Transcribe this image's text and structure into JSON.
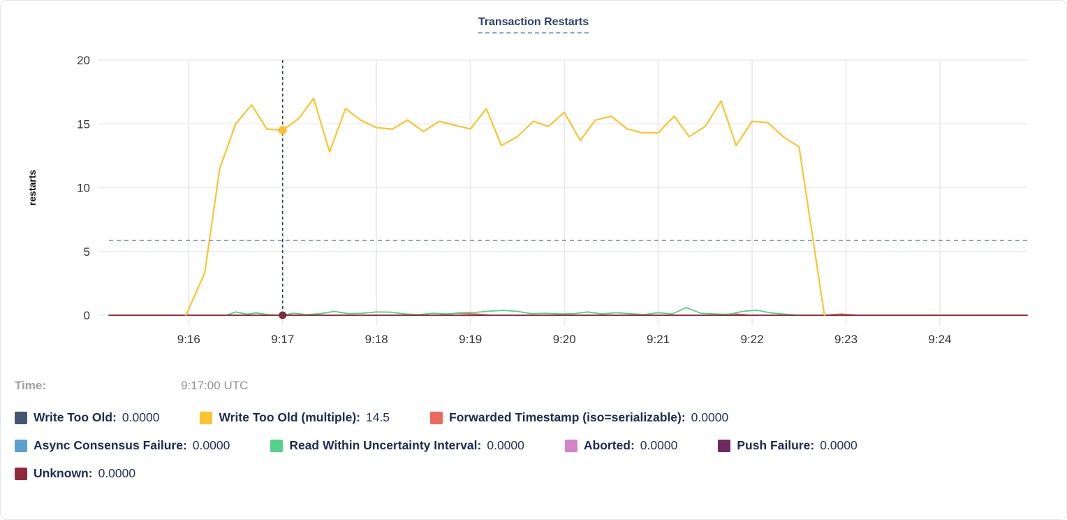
{
  "time_row": {
    "label": "Time:",
    "value": "9:17:00 UTC"
  },
  "chart_data": {
    "type": "line",
    "title": "Transaction Restarts",
    "ylabel": "restarts",
    "ylim": [
      0,
      20
    ],
    "yticks": [
      0,
      5,
      10,
      15,
      20
    ],
    "grid": true,
    "x_axis": {
      "domain_minutes": [
        15.15,
        24.93
      ],
      "tick_minutes": [
        16,
        17,
        18,
        19,
        20,
        21,
        22,
        23,
        24
      ],
      "tick_labels": [
        "9:16",
        "9:17",
        "9:18",
        "9:19",
        "9:20",
        "9:21",
        "9:22",
        "9:23",
        "9:24"
      ]
    },
    "hover": {
      "time_label": "9:17:00 UTC",
      "time_minute": 17,
      "highlighted_series": "Write Too Old (multiple)",
      "highlighted_value": 14.5,
      "crosshair_y_value": 5.86,
      "vline_color": "#27405a",
      "hline_color": "#6f8aa8",
      "dot_top_color": "#fdc02a",
      "dot_bottom_color": "#7c2d3e"
    },
    "grid_color": "#ebebeb",
    "tick_text_color": "#343434",
    "draw_order": [
      0,
      3,
      5,
      6,
      2,
      4,
      7,
      1
    ],
    "legend_rows": [
      [
        0,
        1,
        2
      ],
      [
        3,
        4,
        5,
        6
      ],
      [
        7
      ]
    ],
    "series": [
      {
        "name": "Write Too Old",
        "color": "#45566e",
        "stroke_width": 1.5,
        "value_at_hover": "0.0000",
        "points": [
          [
            15.15,
            0
          ],
          [
            24.93,
            0
          ]
        ]
      },
      {
        "name": "Write Too Old (multiple)",
        "color": "#fec32d",
        "stroke_width": 2.2,
        "value_at_hover": "14.5",
        "points": [
          [
            15.97,
            0
          ],
          [
            16.17,
            3.3
          ],
          [
            16.33,
            11.5
          ],
          [
            16.5,
            15.0
          ],
          [
            16.67,
            16.5
          ],
          [
            16.83,
            14.6
          ],
          [
            17.0,
            14.5
          ],
          [
            17.17,
            15.4
          ],
          [
            17.33,
            17.0
          ],
          [
            17.5,
            12.8
          ],
          [
            17.67,
            16.2
          ],
          [
            17.83,
            15.3
          ],
          [
            18.0,
            14.7
          ],
          [
            18.17,
            14.6
          ],
          [
            18.33,
            15.3
          ],
          [
            18.5,
            14.4
          ],
          [
            18.67,
            15.2
          ],
          [
            18.83,
            14.9
          ],
          [
            19.0,
            14.6
          ],
          [
            19.17,
            16.2
          ],
          [
            19.33,
            13.3
          ],
          [
            19.5,
            14.0
          ],
          [
            19.67,
            15.2
          ],
          [
            19.83,
            14.8
          ],
          [
            20.0,
            15.9
          ],
          [
            20.17,
            13.7
          ],
          [
            20.33,
            15.3
          ],
          [
            20.5,
            15.6
          ],
          [
            20.67,
            14.6
          ],
          [
            20.83,
            14.3
          ],
          [
            21.0,
            14.3
          ],
          [
            21.17,
            15.6
          ],
          [
            21.33,
            14.0
          ],
          [
            21.5,
            14.8
          ],
          [
            21.67,
            16.8
          ],
          [
            21.83,
            13.3
          ],
          [
            22.0,
            15.2
          ],
          [
            22.17,
            15.1
          ],
          [
            22.33,
            14.0
          ],
          [
            22.5,
            13.2
          ],
          [
            22.77,
            0
          ]
        ]
      },
      {
        "name": "Forwarded Timestamp (iso=serializable)",
        "color": "#eb6a5e",
        "stroke_width": 1.6,
        "value_at_hover": "0.0000",
        "points": [
          [
            15.15,
            0
          ],
          [
            18.65,
            0
          ],
          [
            18.85,
            0.16
          ],
          [
            19.05,
            0.1
          ],
          [
            19.25,
            0
          ],
          [
            21.6,
            0
          ],
          [
            21.8,
            0.12
          ],
          [
            22.0,
            0
          ],
          [
            22.75,
            0
          ],
          [
            22.95,
            0.1
          ],
          [
            23.15,
            0
          ],
          [
            24.93,
            0
          ]
        ]
      },
      {
        "name": "Async Consensus Failure",
        "color": "#5b9fd3",
        "stroke_width": 1.5,
        "value_at_hover": "0.0000",
        "points": [
          [
            15.15,
            0
          ],
          [
            24.93,
            0
          ]
        ]
      },
      {
        "name": "Read Within Uncertainty Interval",
        "color": "#55d08b",
        "stroke_width": 1.8,
        "value_at_hover": "0.0000",
        "points": [
          [
            16.4,
            0
          ],
          [
            16.5,
            0.25
          ],
          [
            16.62,
            0.08
          ],
          [
            16.72,
            0.18
          ],
          [
            16.85,
            0.04
          ],
          [
            17.0,
            0
          ],
          [
            17.12,
            0.16
          ],
          [
            17.25,
            0.05
          ],
          [
            17.4,
            0.12
          ],
          [
            17.55,
            0.3
          ],
          [
            17.7,
            0.12
          ],
          [
            17.85,
            0.16
          ],
          [
            18.0,
            0.26
          ],
          [
            18.15,
            0.24
          ],
          [
            18.3,
            0.1
          ],
          [
            18.45,
            0.05
          ],
          [
            18.6,
            0.16
          ],
          [
            18.75,
            0.1
          ],
          [
            18.9,
            0.2
          ],
          [
            19.05,
            0.22
          ],
          [
            19.2,
            0.32
          ],
          [
            19.35,
            0.38
          ],
          [
            19.5,
            0.3
          ],
          [
            19.65,
            0.12
          ],
          [
            19.8,
            0.16
          ],
          [
            19.95,
            0.1
          ],
          [
            20.1,
            0.12
          ],
          [
            20.25,
            0.26
          ],
          [
            20.4,
            0.1
          ],
          [
            20.55,
            0.2
          ],
          [
            20.7,
            0.12
          ],
          [
            20.85,
            0.05
          ],
          [
            21.0,
            0.2
          ],
          [
            21.15,
            0.1
          ],
          [
            21.3,
            0.6
          ],
          [
            21.45,
            0.16
          ],
          [
            21.6,
            0.1
          ],
          [
            21.75,
            0.06
          ],
          [
            21.9,
            0.3
          ],
          [
            22.05,
            0.4
          ],
          [
            22.2,
            0.18
          ],
          [
            22.35,
            0.08
          ],
          [
            22.5,
            0
          ]
        ]
      },
      {
        "name": "Aborted",
        "color": "#d583c9",
        "stroke_width": 1.5,
        "value_at_hover": "0.0000",
        "points": [
          [
            15.15,
            0
          ],
          [
            24.93,
            0
          ]
        ]
      },
      {
        "name": "Push Failure",
        "color": "#6d2960",
        "stroke_width": 1.5,
        "value_at_hover": "0.0000",
        "points": [
          [
            15.15,
            0
          ],
          [
            24.93,
            0
          ]
        ]
      },
      {
        "name": "Unknown",
        "color": "#94283c",
        "stroke_width": 1.8,
        "value_at_hover": "0.0000",
        "points": [
          [
            15.15,
            0
          ],
          [
            24.93,
            0
          ]
        ]
      }
    ]
  }
}
